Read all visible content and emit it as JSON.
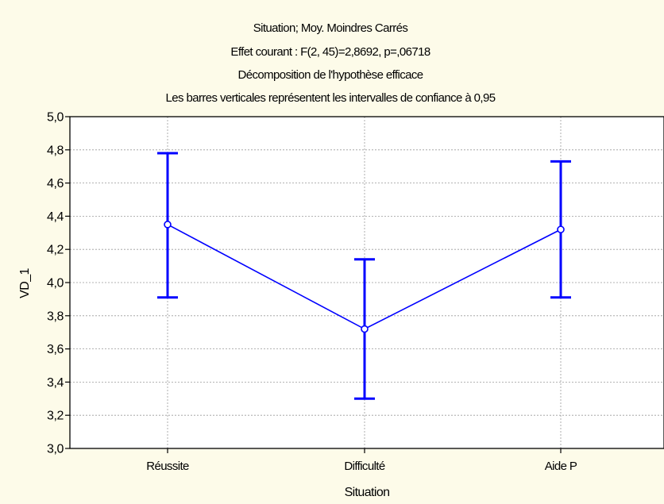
{
  "chart_data": {
    "type": "line",
    "title_lines": [
      "Situation; Moy. Moindres Carrés",
      "Effet courant : F(2, 45)=2,8692, p=,06718",
      "Décomposition de l'hypothèse efficace",
      "Les barres verticales représentent les intervalles de confiance à 0,95"
    ],
    "xlabel": "Situation",
    "ylabel": "VD_1",
    "categories": [
      "Réussite",
      "Difficulté",
      "Aide P"
    ],
    "series": [
      {
        "values": [
          4.35,
          3.72,
          4.32
        ],
        "ci_lower": [
          3.91,
          3.3,
          3.91
        ],
        "ci_upper": [
          4.78,
          4.14,
          4.73
        ]
      }
    ],
    "ylim": [
      3.0,
      5.0
    ],
    "yticks": [
      "3,0",
      "3,2",
      "3,4",
      "3,6",
      "3,8",
      "4,0",
      "4,2",
      "4,4",
      "4,6",
      "4,8",
      "5,0"
    ],
    "ytick_values": [
      3.0,
      3.2,
      3.4,
      3.6,
      3.8,
      4.0,
      4.2,
      4.4,
      4.6,
      4.8,
      5.0
    ],
    "grid": true,
    "colors": {
      "series": "#0000ff",
      "background": "#fdfbe9",
      "plot_area": "#ffffff",
      "grid": "#9a9a9a"
    }
  }
}
